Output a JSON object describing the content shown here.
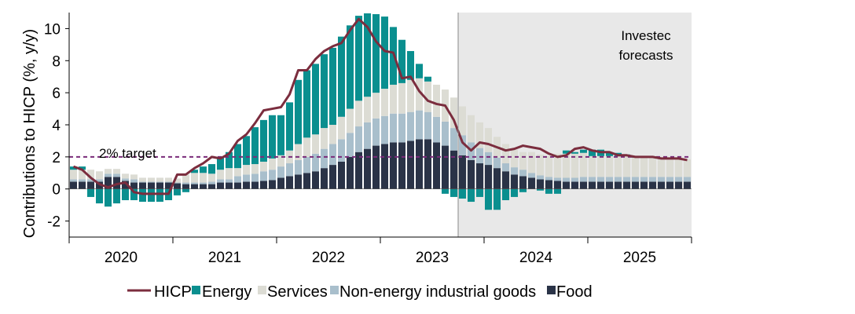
{
  "chart_data": {
    "type": "bar",
    "subtype": "stacked-bar-with-line",
    "ylabel": "Contributions to HICP (%, y/y)",
    "ylim": [
      -3,
      11
    ],
    "yticks": [
      -2,
      0,
      2,
      4,
      6,
      8,
      10
    ],
    "ytick_labels": [
      "-2",
      "0",
      "2",
      "4",
      "6",
      "8",
      "10"
    ],
    "years": [
      "2020",
      "2021",
      "2022",
      "2023",
      "2024",
      "2025"
    ],
    "start": "2020-01",
    "periods": 72,
    "target": {
      "value": 2,
      "label": "2% target"
    },
    "forecast": {
      "start_index": 45,
      "label_line1": "Investec",
      "label_line2": "forecasts"
    },
    "colors": {
      "HICP": "#7b2d3e",
      "Energy": "#0a8f8f",
      "Services": "#dcdcd4",
      "Non-energy industrial goods": "#a9bfcc",
      "Food": "#2a3347",
      "target": "#7a2b7a",
      "forecast_bg": "#e8e8e8"
    },
    "legend": [
      "HICP",
      "Energy",
      "Services",
      "Non-energy industrial goods",
      "Food"
    ],
    "series": [
      {
        "name": "Food",
        "values": [
          0.45,
          0.45,
          0.45,
          0.45,
          0.75,
          0.75,
          0.5,
          0.4,
          0.4,
          0.4,
          0.4,
          0.4,
          0.35,
          0.3,
          0.3,
          0.3,
          0.3,
          0.4,
          0.4,
          0.4,
          0.45,
          0.45,
          0.5,
          0.55,
          0.7,
          0.8,
          0.9,
          1.0,
          1.1,
          1.3,
          1.5,
          1.7,
          2.0,
          2.3,
          2.5,
          2.7,
          2.8,
          2.9,
          2.9,
          3.0,
          3.1,
          3.1,
          2.9,
          2.7,
          2.4,
          2.1,
          1.8,
          1.6,
          1.5,
          1.3,
          1.1,
          0.9,
          0.8,
          0.7,
          0.6,
          0.55,
          0.5,
          0.45,
          0.45,
          0.45,
          0.45,
          0.45,
          0.45,
          0.45,
          0.45,
          0.45,
          0.45,
          0.45,
          0.45,
          0.45,
          0.45,
          0.45
        ]
      },
      {
        "name": "Non-energy industrial goods",
        "values": [
          0.15,
          0.15,
          0.15,
          0.15,
          0.2,
          0.2,
          0.15,
          0.2,
          0.05,
          0.05,
          0.05,
          0.05,
          0.05,
          0.1,
          0.1,
          0.1,
          0.15,
          0.2,
          0.2,
          0.4,
          0.45,
          0.5,
          0.6,
          0.65,
          0.7,
          0.8,
          0.9,
          1.0,
          1.1,
          1.2,
          1.3,
          1.4,
          1.5,
          1.6,
          1.65,
          1.7,
          1.75,
          1.8,
          1.8,
          1.8,
          1.8,
          1.7,
          1.6,
          1.5,
          1.4,
          1.25,
          1.1,
          0.95,
          0.8,
          0.65,
          0.5,
          0.45,
          0.4,
          0.3,
          0.25,
          0.2,
          0.2,
          0.25,
          0.25,
          0.3,
          0.3,
          0.3,
          0.3,
          0.3,
          0.3,
          0.3,
          0.3,
          0.3,
          0.3,
          0.3,
          0.3,
          0.3
        ]
      },
      {
        "name": "Services",
        "values": [
          0.6,
          0.6,
          0.6,
          0.5,
          0.3,
          0.3,
          0.3,
          0.3,
          0.25,
          0.25,
          0.25,
          0.25,
          0.25,
          0.5,
          0.6,
          0.6,
          0.5,
          0.6,
          0.7,
          0.5,
          0.6,
          0.6,
          0.6,
          0.7,
          0.7,
          0.8,
          1.0,
          1.2,
          1.2,
          1.3,
          1.2,
          1.4,
          1.5,
          1.6,
          1.6,
          1.6,
          1.7,
          1.8,
          1.9,
          2.0,
          2.0,
          1.9,
          2.0,
          2.0,
          1.9,
          1.8,
          1.7,
          1.6,
          1.5,
          1.3,
          1.2,
          1.1,
          1.1,
          1.3,
          1.3,
          1.3,
          1.5,
          1.5,
          1.5,
          1.5,
          1.3,
          1.3,
          1.3,
          1.3,
          1.3,
          1.2,
          1.2,
          1.2,
          1.2,
          1.1,
          1.1,
          1.1
        ]
      },
      {
        "name": "Energy",
        "values": [
          0.2,
          0.2,
          -0.5,
          -0.9,
          -1.1,
          -0.9,
          -0.7,
          -0.7,
          -0.8,
          -0.8,
          -0.8,
          -0.7,
          -0.4,
          -0.2,
          0.2,
          0.4,
          0.6,
          0.8,
          1.0,
          1.5,
          1.8,
          2.3,
          2.6,
          2.7,
          2.5,
          3.0,
          4.0,
          4.2,
          4.4,
          4.6,
          4.8,
          5.0,
          5.2,
          5.3,
          5.2,
          4.9,
          4.5,
          3.6,
          2.7,
          1.8,
          0.9,
          0.3,
          0.0,
          -0.3,
          -0.5,
          -0.6,
          -0.8,
          -0.5,
          -1.3,
          -1.3,
          -0.7,
          -0.5,
          -0.2,
          0.0,
          -0.1,
          -0.3,
          -0.3,
          0.2,
          0.1,
          0.2,
          0.4,
          0.4,
          0.2,
          0.2,
          0.1,
          0.1,
          0.1,
          0.0,
          0.0,
          0.0,
          0.0,
          0.0
        ]
      },
      {
        "name": "HICP",
        "values": [
          1.4,
          1.2,
          0.7,
          0.3,
          0.1,
          0.3,
          0.4,
          -0.2,
          -0.3,
          -0.3,
          -0.3,
          -0.3,
          0.9,
          0.9,
          1.3,
          1.6,
          2.0,
          1.9,
          2.2,
          3.0,
          3.4,
          4.1,
          4.9,
          5.0,
          5.1,
          5.9,
          7.4,
          7.4,
          8.1,
          8.6,
          8.9,
          9.1,
          9.9,
          10.6,
          10.1,
          9.2,
          8.6,
          8.5,
          6.9,
          7.0,
          6.1,
          5.5,
          5.3,
          5.2,
          4.3,
          2.9,
          2.4,
          2.9,
          2.8,
          2.6,
          2.4,
          2.5,
          2.7,
          2.6,
          2.5,
          2.2,
          2.0,
          2.1,
          2.5,
          2.6,
          2.4,
          2.3,
          2.3,
          2.1,
          2.1,
          2.0,
          2.0,
          2.0,
          1.9,
          1.9,
          1.9,
          1.8
        ]
      }
    ]
  }
}
